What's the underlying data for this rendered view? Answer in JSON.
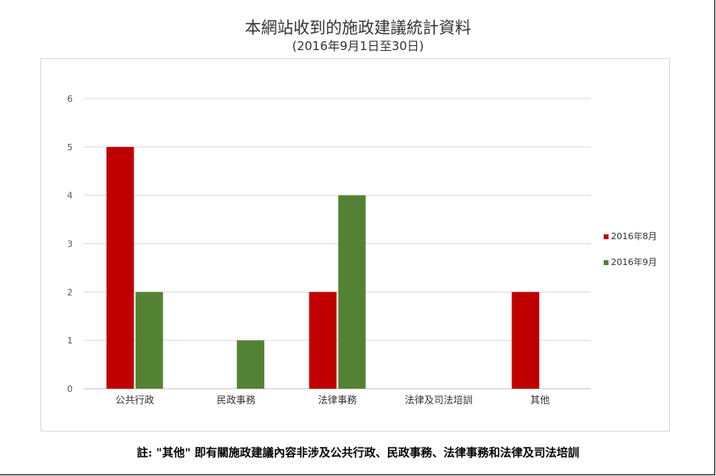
{
  "chart_data": {
    "type": "bar",
    "title": "本網站收到的施政建議統計資料",
    "subtitle": "(2016年9月1日至30日)",
    "categories": [
      "公共行政",
      "民政事務",
      "法律事務",
      "法律及司法培訓",
      "其他"
    ],
    "series": [
      {
        "name": "2016年8月",
        "color": "#c00000",
        "values": [
          5,
          0,
          2,
          0,
          2
        ]
      },
      {
        "name": "2016年9月",
        "color": "#548235",
        "values": [
          2,
          1,
          4,
          0,
          0
        ]
      }
    ],
    "ylim": [
      0,
      6
    ],
    "yticks": [
      "0",
      "1",
      "2",
      "3",
      "4",
      "5",
      "6"
    ],
    "grid": true,
    "legend_position": "right"
  },
  "note": "註: \"其他\" 即有關施政建議內容非涉及公共行政、民政事務、法律事務和法律及司法培訓"
}
